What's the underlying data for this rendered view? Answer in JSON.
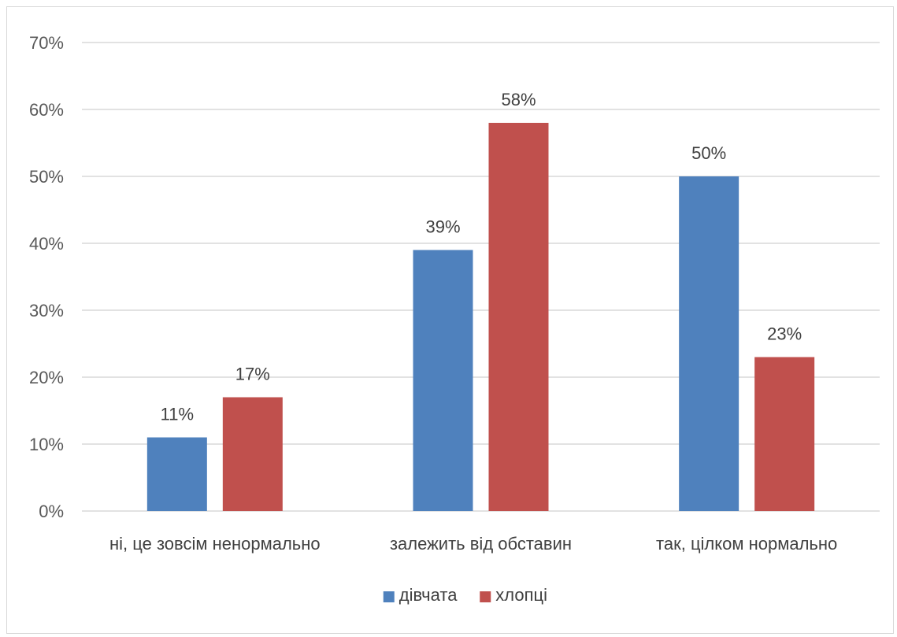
{
  "chart_data": {
    "type": "bar",
    "categories": [
      "ні, це зовсім ненормально",
      "залежить від обставин",
      "так, цілком нормально"
    ],
    "series": [
      {
        "name": "дівчата",
        "values": [
          11,
          39,
          50
        ],
        "labels": [
          "11%",
          "39%",
          "50%"
        ],
        "color": "#4F81BD"
      },
      {
        "name": "хлопці",
        "values": [
          17,
          58,
          23
        ],
        "labels": [
          "17%",
          "58%",
          "23%"
        ],
        "color": "#C0504D"
      }
    ],
    "ylim": [
      0,
      70
    ],
    "yticks": [
      0,
      10,
      20,
      30,
      40,
      50,
      60,
      70
    ],
    "ytick_labels": [
      "0%",
      "10%",
      "20%",
      "30%",
      "40%",
      "50%",
      "60%",
      "70%"
    ],
    "grid": true,
    "legend_position": "bottom",
    "gridline_color": "#d9d9d9"
  }
}
